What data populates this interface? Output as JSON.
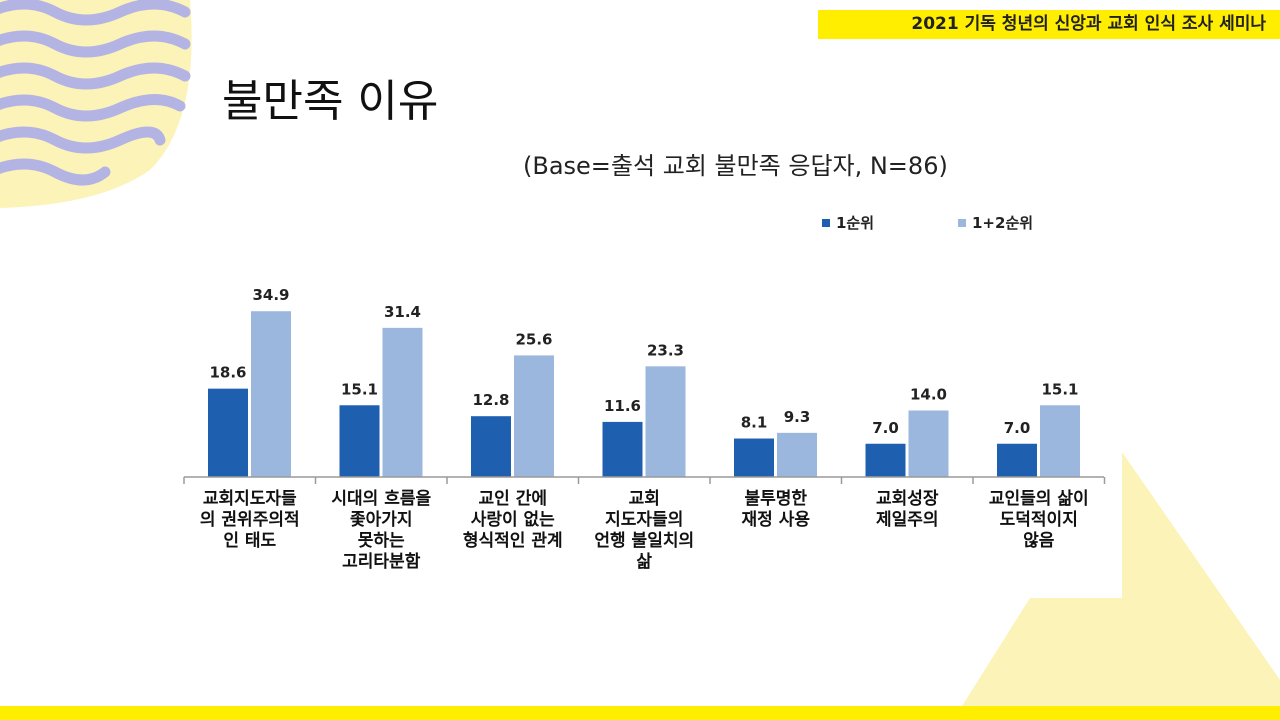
{
  "header": {
    "banner_text": "2021 기독 청년의 신앙과 교회 인식 조사 세미나",
    "banner_color": "#ffee00"
  },
  "slide": {
    "title": "불만족 이유",
    "subtitle": "(Base=출석 교회 불만족 응답자, N=86)"
  },
  "chart_data": {
    "type": "bar",
    "title": "",
    "xlabel": "",
    "ylabel": "",
    "ylim": [
      0,
      40
    ],
    "grid": false,
    "legend_position": "top-right",
    "categories": [
      [
        "교회지도자들",
        "의 권위주의적",
        "인 태도"
      ],
      [
        "시대의 흐름을",
        "좇아가지",
        "못하는",
        "고리타분함"
      ],
      [
        "교인 간에",
        "사랑이 없는",
        "형식적인 관계"
      ],
      [
        "교회",
        "지도자들의",
        "언행 불일치의",
        "삶"
      ],
      [
        "불투명한",
        "재정 사용"
      ],
      [
        "교회성장",
        "제일주의"
      ],
      [
        "교인들의 삶이",
        "도덕적이지",
        "않음"
      ]
    ],
    "series": [
      {
        "name": "1순위",
        "color": "#1f5fb0",
        "values": [
          18.6,
          15.1,
          12.8,
          11.6,
          8.1,
          7.0,
          7.0
        ],
        "labels": [
          "18.6",
          "15.1",
          "12.8",
          "11.6",
          "8.1",
          "7.0",
          "7.0"
        ]
      },
      {
        "name": "1+2순위",
        "color": "#9bb7dd",
        "values": [
          34.9,
          31.4,
          25.6,
          23.3,
          9.3,
          14.0,
          15.1
        ],
        "labels": [
          "34.9",
          "31.4",
          "25.6",
          "23.3",
          "9.3",
          "14.0",
          "15.1"
        ]
      }
    ]
  }
}
